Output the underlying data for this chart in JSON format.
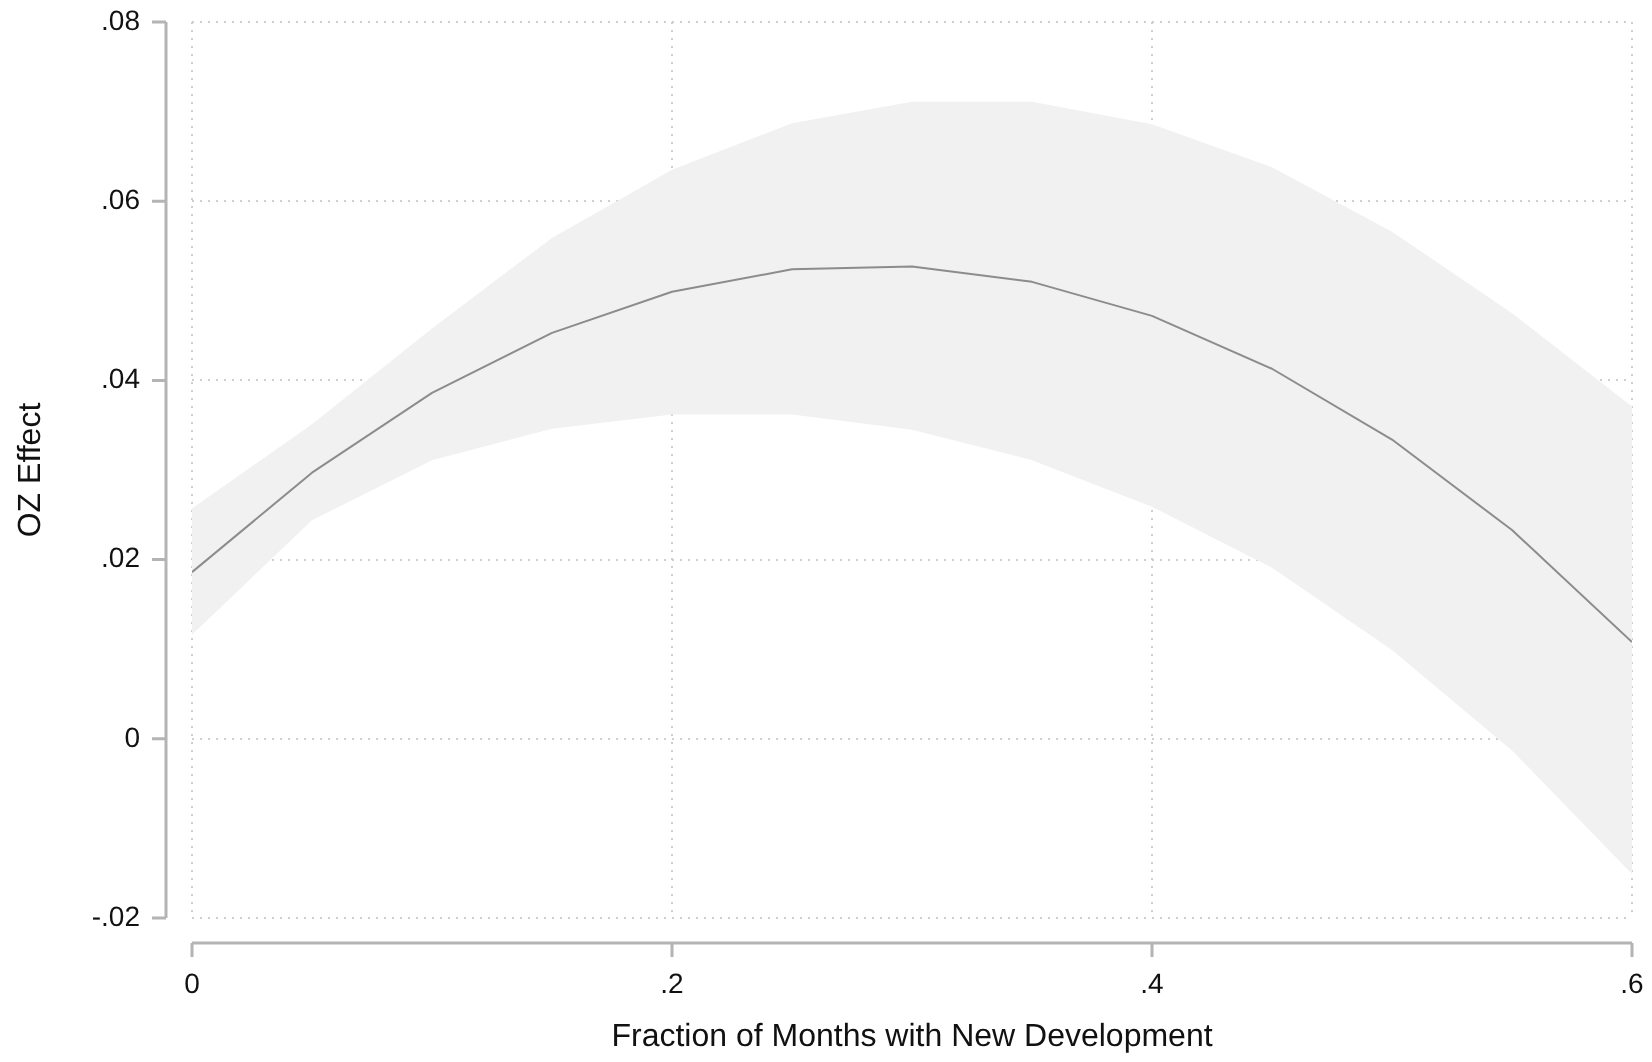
{
  "chart_data": {
    "type": "line",
    "xlabel": "Fraction of Months with New Development",
    "ylabel": "OZ Effect",
    "x": [
      0,
      0.05,
      0.1,
      0.15,
      0.2,
      0.25,
      0.3,
      0.35,
      0.4,
      0.45,
      0.5,
      0.55,
      0.6
    ],
    "series": [
      {
        "color": "#8c8c8c",
        "values": [
          0.0186,
          0.0297,
          0.0386,
          0.0453,
          0.0499,
          0.0524,
          0.0527,
          0.051,
          0.0472,
          0.0413,
          0.0334,
          0.0233,
          0.0108
        ],
        "lower": [
          0.0116,
          0.0244,
          0.0311,
          0.0346,
          0.0362,
          0.0362,
          0.0345,
          0.0311,
          0.0259,
          0.0191,
          0.0099,
          -0.0013,
          -0.0151
        ],
        "upper": [
          0.0257,
          0.0351,
          0.0458,
          0.0559,
          0.0635,
          0.0687,
          0.0711,
          0.0711,
          0.0686,
          0.0638,
          0.0566,
          0.0475,
          0.0371
        ]
      }
    ],
    "xlim": [
      0,
      0.6
    ],
    "ylim": [
      -0.02,
      0.08
    ],
    "xticks": [
      0,
      {
        "value": 0.2,
        "label": ".2"
      },
      {
        "value": 0.4,
        "label": ".4"
      },
      {
        "value": 0.6,
        "label": ".6"
      }
    ],
    "yticks": [
      {
        "value": -0.02,
        "label": "-.02"
      },
      0,
      {
        "value": 0.02,
        "label": ".02"
      },
      {
        "value": 0.04,
        "label": ".04"
      },
      {
        "value": 0.06,
        "label": ".06"
      },
      {
        "value": 0.08,
        "label": ".08"
      }
    ],
    "grid": true
  }
}
